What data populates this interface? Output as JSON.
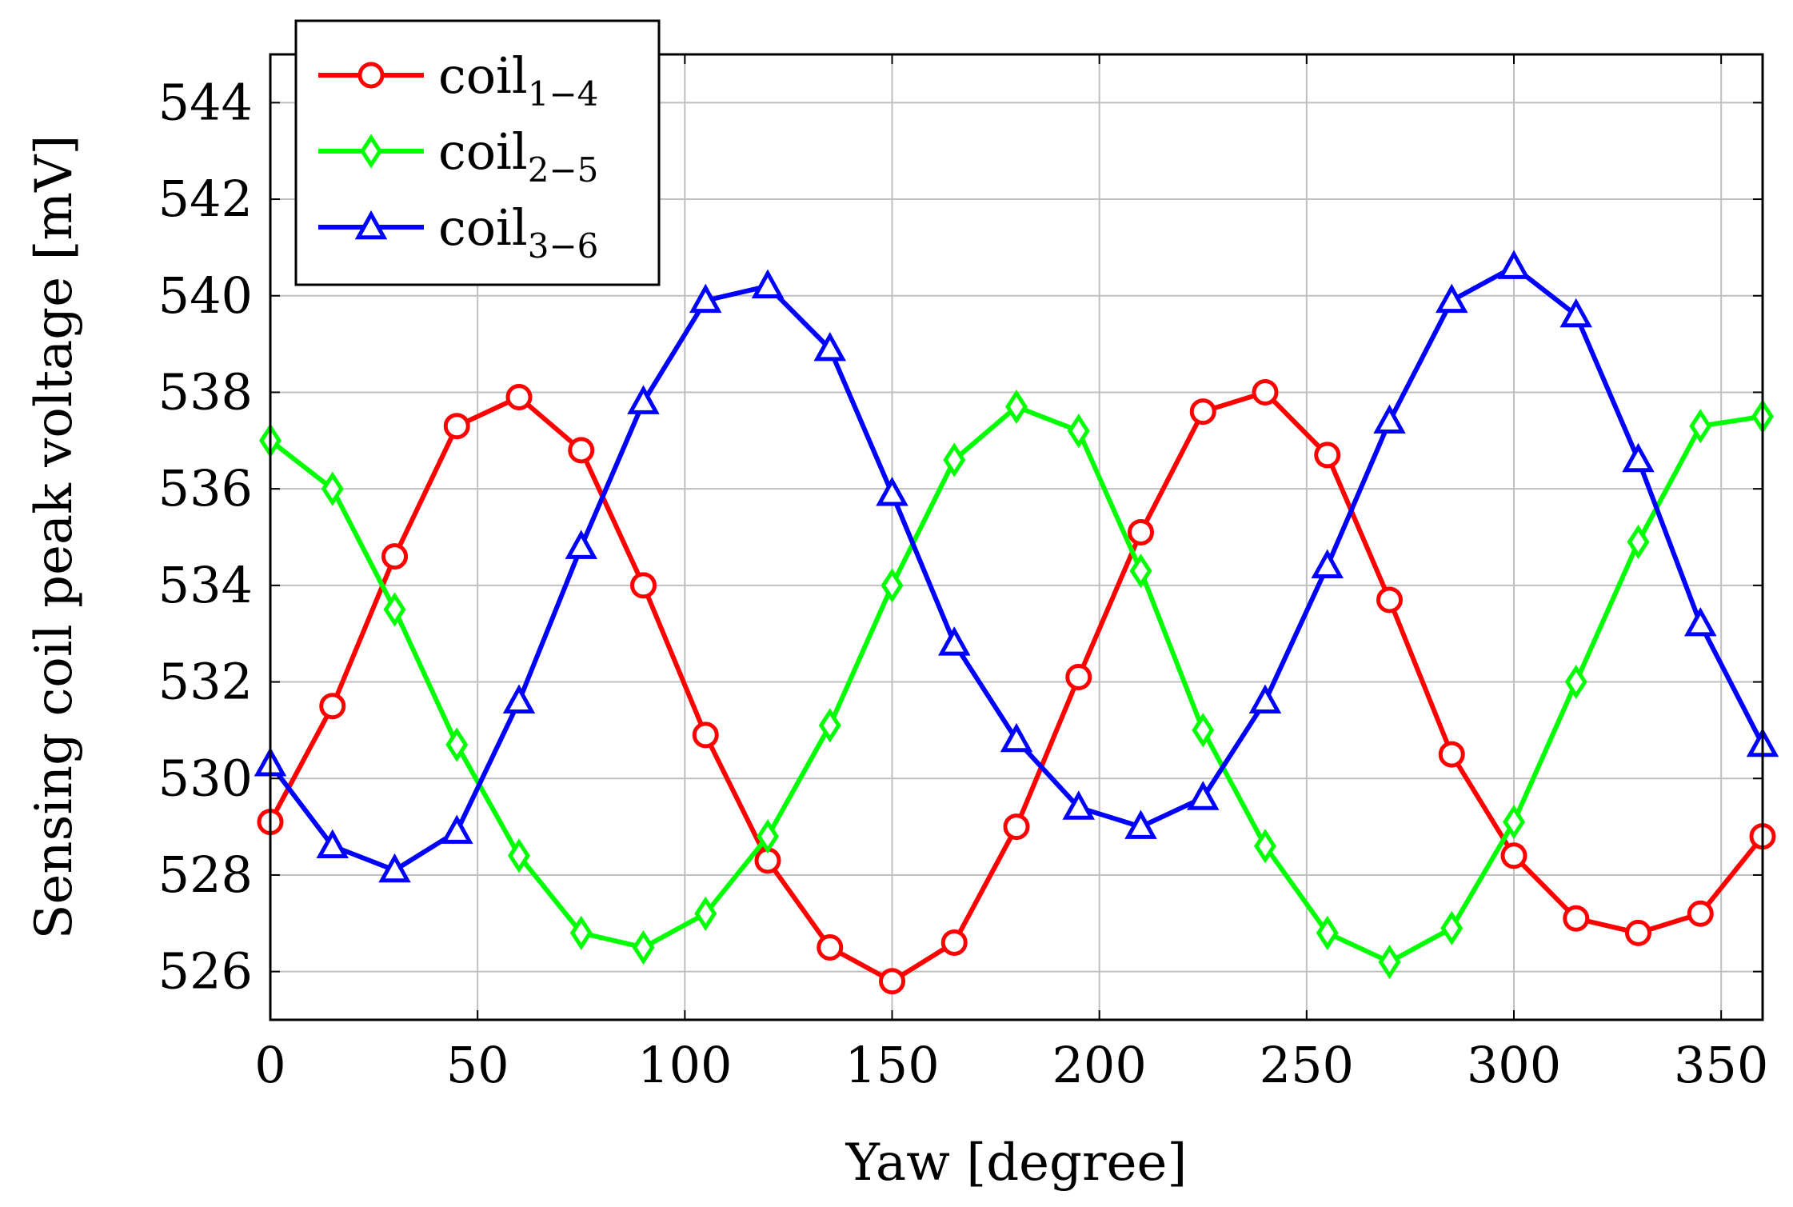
{
  "chart_data": {
    "type": "line",
    "title": "",
    "xlabel": "Yaw [degree]",
    "ylabel": "Sensing coil peak voltage [mV]",
    "xlim": [
      0,
      360
    ],
    "ylim": [
      525,
      545
    ],
    "xticks": [
      0,
      50,
      100,
      150,
      200,
      250,
      300,
      350
    ],
    "yticks": [
      526,
      528,
      530,
      532,
      534,
      536,
      538,
      540,
      542,
      544
    ],
    "grid": true,
    "legend_position": "top-left",
    "x": [
      0,
      15,
      30,
      45,
      60,
      75,
      90,
      105,
      120,
      135,
      150,
      165,
      180,
      195,
      210,
      225,
      240,
      255,
      270,
      285,
      300,
      315,
      330,
      345,
      360
    ],
    "series": [
      {
        "name": "coil",
        "subscript": "1−4",
        "color": "#ff0000",
        "marker": "circle",
        "values": [
          529.1,
          531.5,
          534.6,
          537.3,
          537.9,
          536.8,
          534.0,
          530.9,
          528.3,
          526.5,
          525.8,
          526.6,
          529.0,
          532.1,
          535.1,
          537.6,
          538.0,
          536.7,
          533.7,
          530.5,
          528.4,
          527.1,
          526.8,
          527.2,
          528.8
        ]
      },
      {
        "name": "coil",
        "subscript": "2−5",
        "color": "#00ff00",
        "marker": "diamond",
        "values": [
          537.0,
          536.0,
          533.5,
          530.7,
          528.4,
          526.8,
          526.5,
          527.2,
          528.8,
          531.1,
          534.0,
          536.6,
          537.7,
          537.2,
          534.3,
          531.0,
          528.6,
          526.8,
          526.2,
          526.9,
          529.1,
          532.0,
          534.9,
          537.3,
          537.5
        ]
      },
      {
        "name": "coil",
        "subscript": "3−6",
        "color": "#0000ff",
        "marker": "triangle",
        "values": [
          530.3,
          528.6,
          528.1,
          528.9,
          531.6,
          534.8,
          537.8,
          539.9,
          540.2,
          538.9,
          535.9,
          532.8,
          530.8,
          529.4,
          529.0,
          529.6,
          531.6,
          534.4,
          537.4,
          539.9,
          540.6,
          539.6,
          536.6,
          533.2,
          530.7
        ]
      }
    ]
  }
}
